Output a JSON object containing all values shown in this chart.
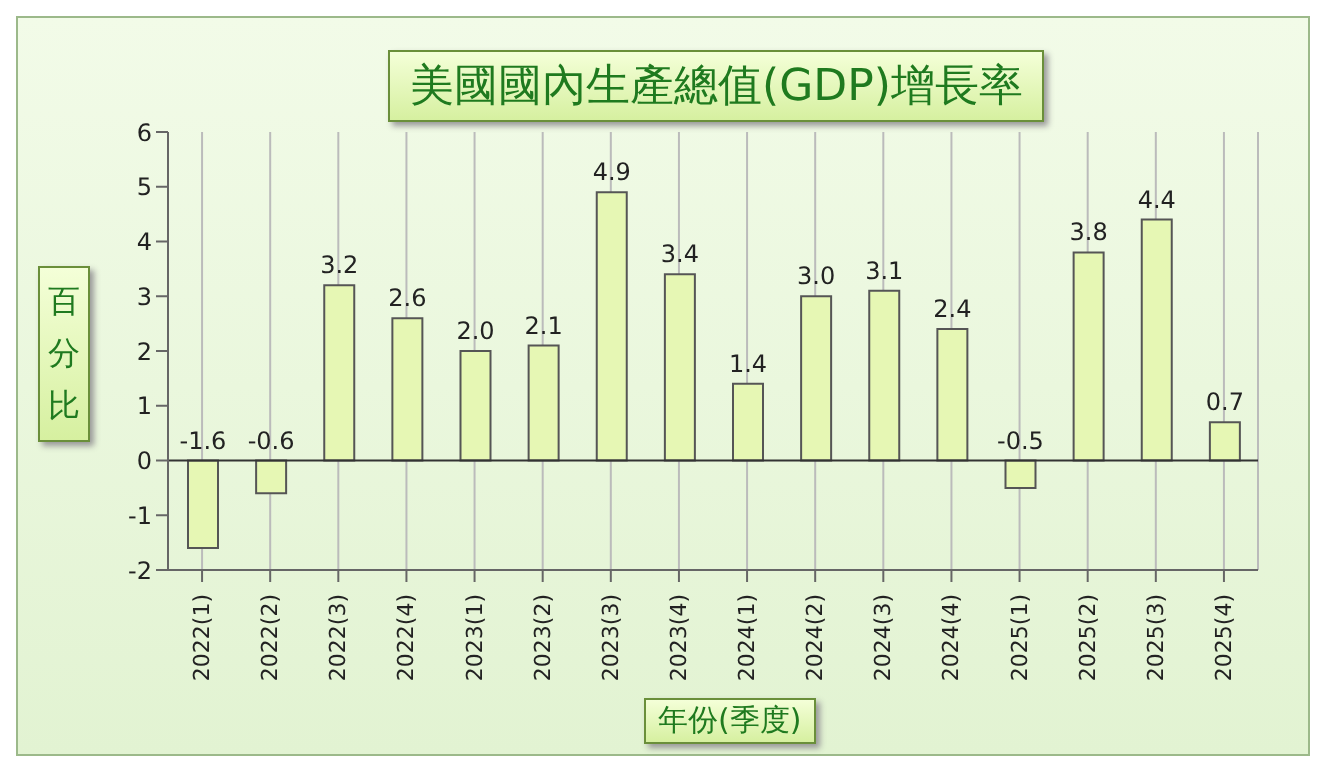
{
  "chart_data": {
    "type": "bar",
    "title": "美國國內生產總值(GDP)增長率",
    "xlabel": "年份(季度)",
    "ylabel": "百分比",
    "categories": [
      "2022(1)",
      "2022(2)",
      "2022(3)",
      "2022(4)",
      "2023(1)",
      "2023(2)",
      "2023(3)",
      "2023(4)",
      "2024(1)",
      "2024(2)",
      "2024(3)",
      "2024(4)",
      "2025(1)",
      "2025(2)",
      "2025(3)",
      "2025(4)"
    ],
    "values": [
      -1.6,
      -0.6,
      3.2,
      2.6,
      2.0,
      2.1,
      4.9,
      3.4,
      1.4,
      3.0,
      3.1,
      2.4,
      -0.5,
      3.8,
      4.4,
      0.7
    ],
    "value_labels": [
      "-1.6",
      "-0.6",
      "3.2",
      "2.6",
      "2.0",
      "2.1",
      "4.9",
      "3.4",
      "1.4",
      "3.0",
      "3.1",
      "2.4",
      "-0.5",
      "3.8",
      "4.4",
      "0.7"
    ],
    "color": "#e6f7b4",
    "ylim": [
      -2,
      6
    ],
    "yticks": [
      -2,
      -1,
      0,
      1,
      2,
      3,
      4,
      5,
      6
    ],
    "grid": "x",
    "ref_lines": [
      {
        "axis": "y",
        "value": 0,
        "color": "#333333"
      }
    ]
  }
}
